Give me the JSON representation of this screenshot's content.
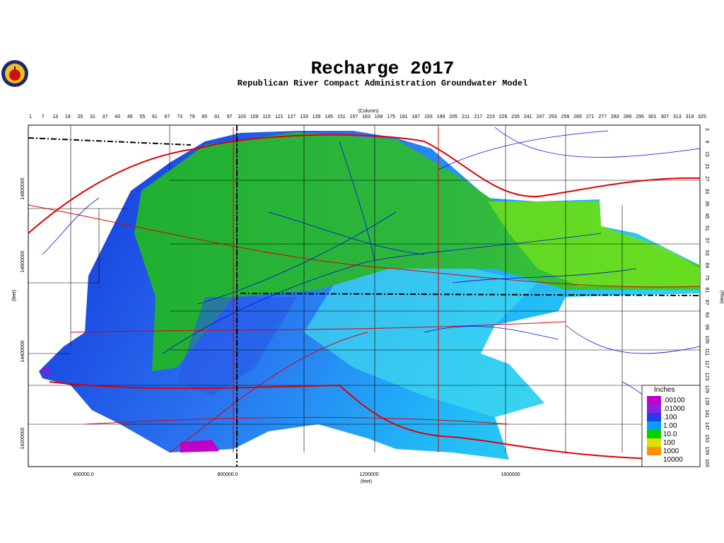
{
  "header": {
    "title": "Recharge 2017",
    "subtitle": "Republican River Compact Administration Groundwater Model"
  },
  "axes": {
    "column_title": "(Column)",
    "row_title": "(Row)",
    "x_title": "(feet)",
    "y_title": "(feet)",
    "columns": [
      1,
      7,
      13,
      19,
      25,
      31,
      37,
      43,
      49,
      55,
      61,
      67,
      73,
      79,
      85,
      91,
      97,
      103,
      109,
      115,
      121,
      127,
      133,
      139,
      145,
      151,
      157,
      163,
      169,
      175,
      181,
      187,
      193,
      199,
      205,
      211,
      217,
      223,
      229,
      235,
      241,
      247,
      253,
      259,
      265,
      271,
      277,
      283,
      289,
      295,
      301,
      307,
      313,
      319,
      325
    ],
    "rows": [
      3,
      9,
      15,
      21,
      27,
      33,
      39,
      45,
      51,
      57,
      63,
      69,
      75,
      81,
      87,
      93,
      99,
      105,
      111,
      117,
      123,
      129,
      135,
      141,
      147,
      153,
      159,
      165
    ],
    "x_ticks": [
      "400000.0",
      "800000.0",
      "1200000",
      "1600000"
    ],
    "y_ticks": [
      "14800000",
      "14600000",
      "14400000",
      "14200000"
    ]
  },
  "legend": {
    "title": "Inches",
    "items": [
      {
        "label": ".00100",
        "color": "#c000c8"
      },
      {
        "label": ".01000",
        "color": "#9020e0"
      },
      {
        "label": ".100",
        "color": "#2040f0"
      },
      {
        "label": "1.00",
        "color": "#00a0ff"
      },
      {
        "label": "10.0",
        "color": "#00d000"
      },
      {
        "label": "100",
        "color": "#e0e000"
      },
      {
        "label": "1000",
        "color": "#ff9000"
      },
      {
        "label": "10000",
        "color": "#ffffff"
      }
    ]
  }
}
